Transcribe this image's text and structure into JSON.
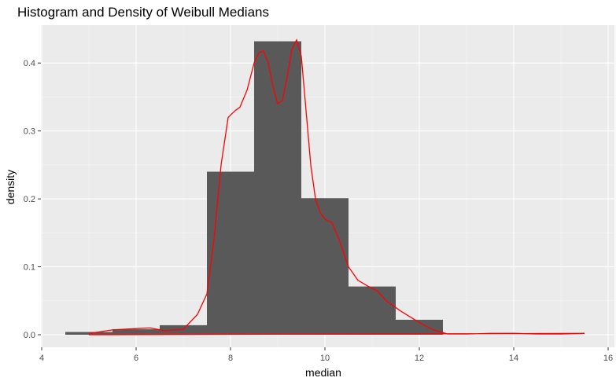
{
  "chart_data": {
    "type": "histogram",
    "title": "Histogram and Density of Weibull Medians",
    "xlabel": "median",
    "ylabel": "density",
    "xlim": [
      4,
      16
    ],
    "ylim": [
      0,
      0.45
    ],
    "x_ticks": [
      4,
      6,
      8,
      10,
      12,
      14,
      16
    ],
    "y_ticks": [
      0.0,
      0.1,
      0.2,
      0.3,
      0.4
    ],
    "y_tick_labels": [
      "0.0",
      "0.1",
      "0.2",
      "0.3",
      "0.4"
    ],
    "grid": true,
    "bin_width": 1,
    "bins": [
      {
        "start": 4.5,
        "end": 5.5,
        "density": 0.004
      },
      {
        "start": 5.5,
        "end": 6.5,
        "density": 0.008
      },
      {
        "start": 6.5,
        "end": 7.5,
        "density": 0.014
      },
      {
        "start": 7.5,
        "end": 8.5,
        "density": 0.24
      },
      {
        "start": 8.5,
        "end": 9.5,
        "density": 0.432
      },
      {
        "start": 9.5,
        "end": 10.5,
        "density": 0.201
      },
      {
        "start": 10.5,
        "end": 11.5,
        "density": 0.071
      },
      {
        "start": 11.5,
        "end": 12.5,
        "density": 0.022
      }
    ],
    "density_curve": {
      "x": [
        5.0,
        5.5,
        6.0,
        6.3,
        6.6,
        7.0,
        7.3,
        7.5,
        7.65,
        7.8,
        7.95,
        8.1,
        8.2,
        8.35,
        8.5,
        8.6,
        8.7,
        8.8,
        8.9,
        9.0,
        9.1,
        9.2,
        9.3,
        9.4,
        9.5,
        9.6,
        9.7,
        9.8,
        9.9,
        10.0,
        10.15,
        10.3,
        10.5,
        10.7,
        10.9,
        11.1,
        11.3,
        11.6,
        12.0,
        12.3,
        12.6,
        13.0,
        13.5,
        14.0,
        14.5,
        15.0,
        15.5
      ],
      "y": [
        0.002,
        0.007,
        0.009,
        0.01,
        0.006,
        0.008,
        0.03,
        0.06,
        0.14,
        0.25,
        0.32,
        0.33,
        0.335,
        0.36,
        0.4,
        0.415,
        0.418,
        0.4,
        0.365,
        0.34,
        0.345,
        0.38,
        0.42,
        0.434,
        0.41,
        0.33,
        0.25,
        0.2,
        0.18,
        0.17,
        0.165,
        0.14,
        0.1,
        0.08,
        0.072,
        0.065,
        0.05,
        0.035,
        0.018,
        0.007,
        0.001,
        0.001,
        0.002,
        0.002,
        0.001,
        0.001,
        0.002
      ]
    },
    "colors": {
      "bars": "#595959",
      "density_line": "#ff0000",
      "panel_background": "#ebebeb",
      "grid_major": "#ffffff",
      "tick_text": "#4d4d4d"
    }
  }
}
